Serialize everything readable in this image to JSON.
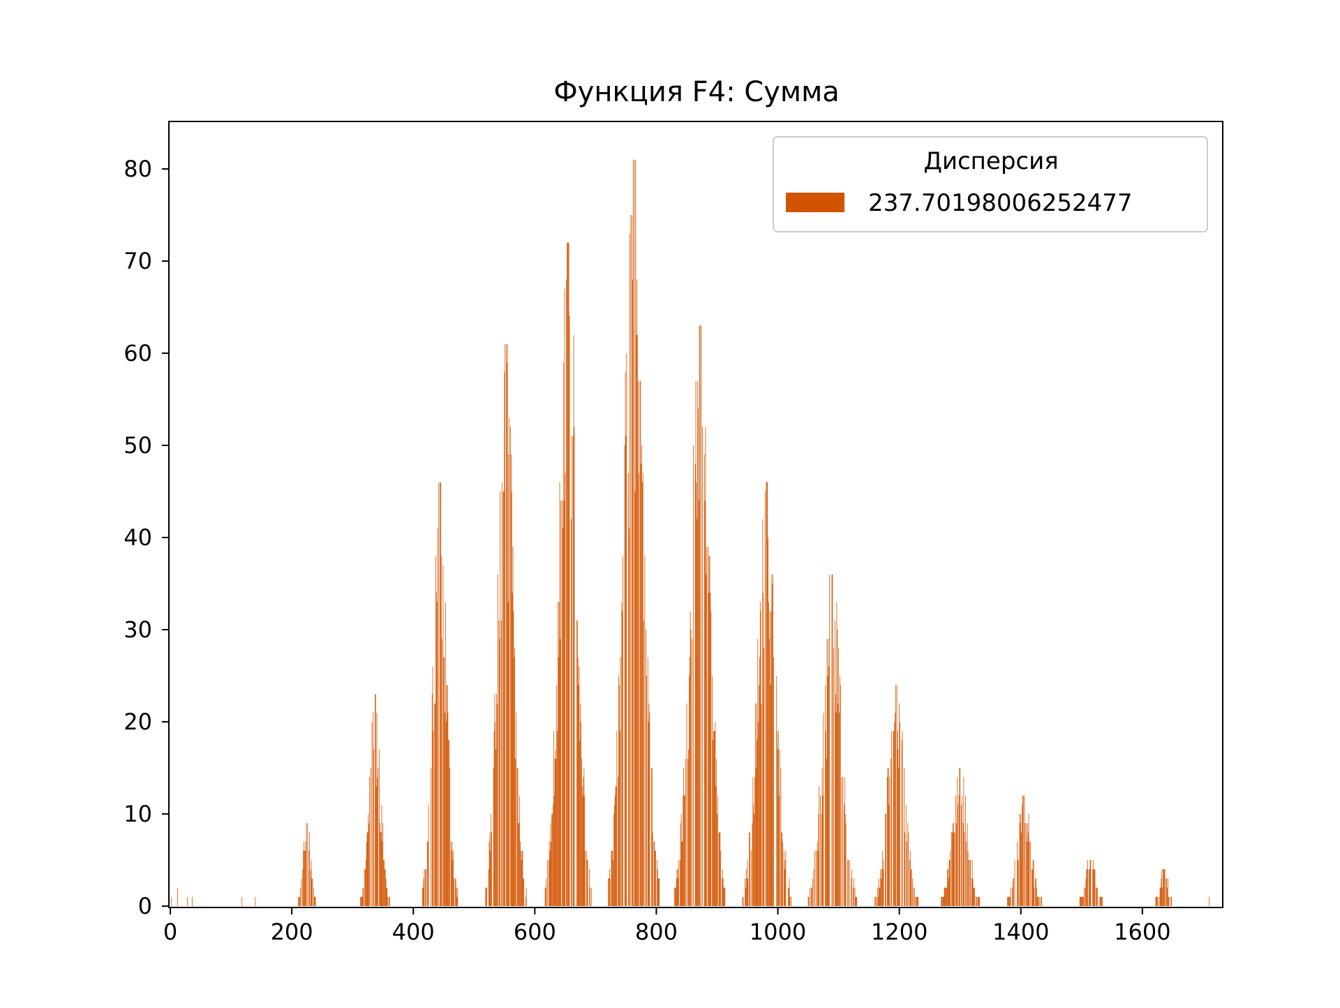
{
  "chart_data": {
    "type": "bar",
    "title": "Функция F4: Сумма",
    "xlabel": "",
    "ylabel": "",
    "xlim": [
      0,
      1730
    ],
    "ylim": [
      0,
      85
    ],
    "x_ticks": [
      0,
      200,
      400,
      600,
      800,
      1000,
      1200,
      1400,
      1600
    ],
    "y_ticks": [
      0,
      10,
      20,
      30,
      40,
      50,
      60,
      70,
      80
    ],
    "grid": false,
    "legend": {
      "title": "Дисперсия",
      "placement": "top-right",
      "entries": [
        "237.70198006252477"
      ]
    },
    "bar_color": "#d35400",
    "clusters": [
      {
        "center": 225,
        "peak": 9,
        "width": 16
      },
      {
        "center": 337,
        "peak": 23,
        "width": 24
      },
      {
        "center": 443,
        "peak": 46,
        "width": 30
      },
      {
        "center": 552,
        "peak": 61,
        "width": 34
      },
      {
        "center": 655,
        "peak": 72,
        "width": 38
      },
      {
        "center": 763,
        "peak": 81,
        "width": 42
      },
      {
        "center": 872,
        "peak": 63,
        "width": 42
      },
      {
        "center": 982,
        "peak": 46,
        "width": 40
      },
      {
        "center": 1090,
        "peak": 36,
        "width": 40
      },
      {
        "center": 1195,
        "peak": 24,
        "width": 36
      },
      {
        "center": 1300,
        "peak": 15,
        "width": 34
      },
      {
        "center": 1405,
        "peak": 12,
        "width": 30
      },
      {
        "center": 1515,
        "peak": 5,
        "width": 24
      },
      {
        "center": 1635,
        "peak": 4,
        "width": 18
      }
    ],
    "isolated_bars": [
      {
        "x": 2,
        "y": 1
      },
      {
        "x": 12,
        "y": 2
      },
      {
        "x": 28,
        "y": 1
      },
      {
        "x": 36,
        "y": 1
      },
      {
        "x": 118,
        "y": 1
      },
      {
        "x": 140,
        "y": 1
      },
      {
        "x": 1710,
        "y": 1
      }
    ]
  }
}
